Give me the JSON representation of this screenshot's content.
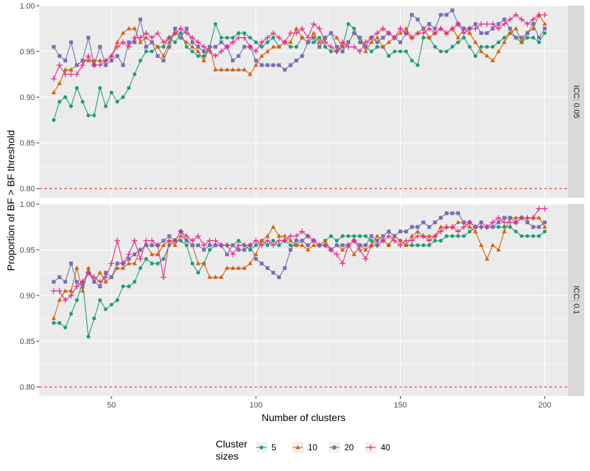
{
  "chart_data": {
    "type": "line",
    "xlabel": "Number of clusters",
    "ylabel": "Proportion of BF > BF threshold",
    "xlim": [
      25,
      208
    ],
    "ylim": [
      0.79,
      1.0
    ],
    "xticks": [
      50,
      100,
      150,
      200
    ],
    "yticks": [
      0.8,
      0.85,
      0.9,
      0.95,
      1.0
    ],
    "ytick_labels": [
      "0.80",
      "0.85",
      "0.90",
      "0.95",
      "1.00"
    ],
    "threshold_line": 0.8,
    "grid": true,
    "legend_position": "bottom",
    "legend": {
      "title_line1": "Cluster",
      "title_line2": "sizes",
      "entries": [
        "5",
        "10",
        "20",
        "40"
      ]
    },
    "colors": [
      "#1b9e77",
      "#d95f02",
      "#7570b3",
      "#e7298a"
    ],
    "markers": [
      "circle",
      "triangle",
      "square",
      "plus"
    ],
    "x": [
      30,
      32,
      34,
      36,
      38,
      40,
      42,
      44,
      46,
      48,
      50,
      52,
      54,
      56,
      58,
      60,
      62,
      64,
      66,
      68,
      70,
      72,
      74,
      76,
      78,
      80,
      82,
      84,
      86,
      88,
      90,
      92,
      94,
      96,
      98,
      100,
      102,
      104,
      106,
      108,
      110,
      112,
      114,
      116,
      118,
      120,
      122,
      124,
      126,
      128,
      130,
      132,
      134,
      136,
      138,
      140,
      142,
      144,
      146,
      148,
      150,
      152,
      154,
      156,
      158,
      160,
      162,
      164,
      166,
      168,
      170,
      172,
      174,
      176,
      178,
      180,
      182,
      184,
      186,
      188,
      190,
      192,
      194,
      196,
      198,
      200
    ],
    "panels": [
      {
        "label": "ICC: 0.05",
        "series": [
          {
            "name": "5",
            "values": [
              0.875,
              0.895,
              0.9,
              0.89,
              0.91,
              0.895,
              0.88,
              0.88,
              0.91,
              0.89,
              0.905,
              0.895,
              0.9,
              0.91,
              0.925,
              0.94,
              0.95,
              0.95,
              0.955,
              0.955,
              0.965,
              0.96,
              0.97,
              0.955,
              0.95,
              0.945,
              0.945,
              0.955,
              0.98,
              0.965,
              0.965,
              0.965,
              0.97,
              0.97,
              0.965,
              0.96,
              0.955,
              0.96,
              0.965,
              0.955,
              0.96,
              0.955,
              0.955,
              0.965,
              0.96,
              0.96,
              0.965,
              0.955,
              0.95,
              0.95,
              0.955,
              0.98,
              0.975,
              0.96,
              0.955,
              0.95,
              0.955,
              0.955,
              0.945,
              0.95,
              0.95,
              0.95,
              0.94,
              0.935,
              0.965,
              0.965,
              0.955,
              0.95,
              0.95,
              0.955,
              0.96,
              0.965,
              0.955,
              0.945,
              0.955,
              0.955,
              0.955,
              0.96,
              0.965,
              0.97,
              0.965,
              0.96,
              0.965,
              0.965,
              0.96,
              0.97
            ]
          },
          {
            "name": "10",
            "values": [
              0.905,
              0.915,
              0.93,
              0.93,
              0.935,
              0.94,
              0.94,
              0.94,
              0.94,
              0.94,
              0.945,
              0.96,
              0.97,
              0.975,
              0.975,
              0.96,
              0.965,
              0.96,
              0.955,
              0.945,
              0.96,
              0.97,
              0.965,
              0.96,
              0.955,
              0.95,
              0.94,
              0.955,
              0.93,
              0.93,
              0.93,
              0.93,
              0.93,
              0.93,
              0.925,
              0.935,
              0.945,
              0.95,
              0.955,
              0.955,
              0.96,
              0.96,
              0.975,
              0.965,
              0.96,
              0.97,
              0.96,
              0.965,
              0.97,
              0.965,
              0.955,
              0.96,
              0.97,
              0.965,
              0.95,
              0.96,
              0.965,
              0.955,
              0.96,
              0.965,
              0.97,
              0.975,
              0.965,
              0.97,
              0.975,
              0.965,
              0.97,
              0.975,
              0.97,
              0.975,
              0.965,
              0.975,
              0.97,
              0.96,
              0.95,
              0.945,
              0.94,
              0.95,
              0.96,
              0.97,
              0.975,
              0.96,
              0.97,
              0.975,
              0.99,
              0.98
            ]
          },
          {
            "name": "20",
            "values": [
              0.955,
              0.945,
              0.94,
              0.96,
              0.935,
              0.94,
              0.965,
              0.935,
              0.955,
              0.935,
              0.94,
              0.945,
              0.935,
              0.96,
              0.96,
              0.985,
              0.955,
              0.96,
              0.945,
              0.94,
              0.955,
              0.975,
              0.965,
              0.975,
              0.96,
              0.955,
              0.95,
              0.955,
              0.955,
              0.96,
              0.955,
              0.94,
              0.945,
              0.955,
              0.955,
              0.94,
              0.935,
              0.935,
              0.935,
              0.935,
              0.93,
              0.935,
              0.94,
              0.945,
              0.96,
              0.965,
              0.955,
              0.965,
              0.97,
              0.955,
              0.95,
              0.96,
              0.97,
              0.965,
              0.955,
              0.965,
              0.96,
              0.965,
              0.97,
              0.965,
              0.96,
              0.97,
              0.99,
              0.985,
              0.975,
              0.98,
              0.975,
              0.99,
              0.99,
              0.995,
              0.98,
              0.975,
              0.975,
              0.98,
              0.97,
              0.97,
              0.975,
              0.98,
              0.985,
              0.975,
              0.965,
              0.965,
              0.97,
              0.98,
              0.965,
              0.975
            ]
          },
          {
            "name": "40",
            "values": [
              0.92,
              0.935,
              0.925,
              0.925,
              0.925,
              0.935,
              0.945,
              0.935,
              0.935,
              0.94,
              0.945,
              0.955,
              0.96,
              0.955,
              0.965,
              0.965,
              0.97,
              0.965,
              0.97,
              0.96,
              0.965,
              0.97,
              0.975,
              0.97,
              0.965,
              0.96,
              0.955,
              0.95,
              0.945,
              0.95,
              0.955,
              0.96,
              0.965,
              0.965,
              0.955,
              0.95,
              0.96,
              0.965,
              0.97,
              0.965,
              0.96,
              0.97,
              0.97,
              0.975,
              0.965,
              0.98,
              0.975,
              0.96,
              0.955,
              0.95,
              0.96,
              0.955,
              0.955,
              0.95,
              0.96,
              0.965,
              0.97,
              0.975,
              0.97,
              0.965,
              0.975,
              0.97,
              0.965,
              0.97,
              0.97,
              0.975,
              0.97,
              0.975,
              0.97,
              0.975,
              0.98,
              0.97,
              0.975,
              0.975,
              0.98,
              0.98,
              0.98,
              0.975,
              0.98,
              0.985,
              0.99,
              0.985,
              0.98,
              0.985,
              0.99,
              0.99
            ]
          }
        ]
      },
      {
        "label": "ICC: 0.1",
        "series": [
          {
            "name": "5",
            "values": [
              0.87,
              0.87,
              0.865,
              0.88,
              0.895,
              0.915,
              0.855,
              0.875,
              0.895,
              0.885,
              0.89,
              0.895,
              0.91,
              0.91,
              0.915,
              0.93,
              0.94,
              0.935,
              0.935,
              0.94,
              0.955,
              0.96,
              0.96,
              0.955,
              0.935,
              0.925,
              0.935,
              0.95,
              0.955,
              0.955,
              0.955,
              0.955,
              0.96,
              0.955,
              0.95,
              0.955,
              0.96,
              0.955,
              0.96,
              0.955,
              0.96,
              0.955,
              0.955,
              0.96,
              0.965,
              0.96,
              0.955,
              0.96,
              0.965,
              0.96,
              0.965,
              0.965,
              0.965,
              0.965,
              0.965,
              0.96,
              0.955,
              0.96,
              0.955,
              0.965,
              0.96,
              0.955,
              0.955,
              0.955,
              0.955,
              0.955,
              0.96,
              0.96,
              0.965,
              0.965,
              0.965,
              0.965,
              0.97,
              0.975,
              0.975,
              0.975,
              0.975,
              0.975,
              0.975,
              0.975,
              0.97,
              0.965,
              0.965,
              0.965,
              0.965,
              0.97
            ]
          },
          {
            "name": "10",
            "values": [
              0.875,
              0.895,
              0.905,
              0.905,
              0.93,
              0.905,
              0.93,
              0.915,
              0.925,
              0.915,
              0.92,
              0.93,
              0.93,
              0.935,
              0.935,
              0.95,
              0.955,
              0.945,
              0.945,
              0.955,
              0.96,
              0.955,
              0.965,
              0.96,
              0.955,
              0.935,
              0.935,
              0.92,
              0.92,
              0.92,
              0.93,
              0.93,
              0.93,
              0.93,
              0.935,
              0.945,
              0.96,
              0.965,
              0.975,
              0.965,
              0.965,
              0.96,
              0.955,
              0.955,
              0.95,
              0.955,
              0.955,
              0.96,
              0.95,
              0.955,
              0.95,
              0.955,
              0.945,
              0.955,
              0.95,
              0.955,
              0.965,
              0.96,
              0.955,
              0.965,
              0.96,
              0.955,
              0.965,
              0.97,
              0.965,
              0.965,
              0.965,
              0.975,
              0.975,
              0.975,
              0.98,
              0.98,
              0.975,
              0.97,
              0.955,
              0.94,
              0.955,
              0.95,
              0.97,
              0.985,
              0.985,
              0.985,
              0.985,
              0.985,
              0.985,
              0.975
            ]
          },
          {
            "name": "20",
            "values": [
              0.915,
              0.92,
              0.915,
              0.935,
              0.915,
              0.91,
              0.925,
              0.915,
              0.91,
              0.925,
              0.92,
              0.935,
              0.935,
              0.94,
              0.945,
              0.95,
              0.955,
              0.955,
              0.955,
              0.96,
              0.965,
              0.96,
              0.97,
              0.96,
              0.955,
              0.955,
              0.95,
              0.955,
              0.955,
              0.955,
              0.945,
              0.955,
              0.95,
              0.95,
              0.955,
              0.94,
              0.935,
              0.93,
              0.925,
              0.92,
              0.93,
              0.95,
              0.96,
              0.96,
              0.955,
              0.96,
              0.955,
              0.955,
              0.95,
              0.955,
              0.955,
              0.955,
              0.96,
              0.955,
              0.955,
              0.965,
              0.96,
              0.965,
              0.97,
              0.965,
              0.97,
              0.97,
              0.975,
              0.975,
              0.98,
              0.975,
              0.98,
              0.985,
              0.99,
              0.99,
              0.99,
              0.98,
              0.98,
              0.975,
              0.98,
              0.975,
              0.975,
              0.98,
              0.985,
              0.985,
              0.98,
              0.985,
              0.98,
              0.975,
              0.975,
              0.98
            ]
          },
          {
            "name": "40",
            "values": [
              0.905,
              0.905,
              0.895,
              0.9,
              0.91,
              0.915,
              0.925,
              0.92,
              0.915,
              0.92,
              0.935,
              0.96,
              0.935,
              0.945,
              0.96,
              0.94,
              0.96,
              0.96,
              0.955,
              0.92,
              0.96,
              0.96,
              0.97,
              0.965,
              0.96,
              0.965,
              0.955,
              0.96,
              0.96,
              0.955,
              0.955,
              0.945,
              0.955,
              0.955,
              0.955,
              0.96,
              0.955,
              0.96,
              0.955,
              0.96,
              0.96,
              0.965,
              0.965,
              0.97,
              0.965,
              0.96,
              0.955,
              0.955,
              0.95,
              0.945,
              0.935,
              0.955,
              0.96,
              0.95,
              0.94,
              0.955,
              0.955,
              0.96,
              0.965,
              0.96,
              0.955,
              0.96,
              0.96,
              0.965,
              0.965,
              0.96,
              0.965,
              0.97,
              0.975,
              0.975,
              0.97,
              0.975,
              0.98,
              0.975,
              0.975,
              0.975,
              0.98,
              0.985,
              0.98,
              0.98,
              0.98,
              0.985,
              0.985,
              0.985,
              0.995,
              0.995
            ]
          }
        ]
      }
    ]
  }
}
